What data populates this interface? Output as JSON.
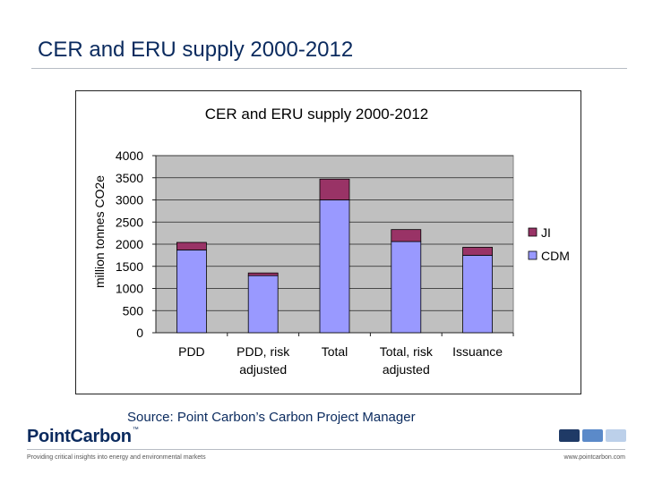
{
  "slide": {
    "title": "CER and ERU supply 2000-2012",
    "source": "Source: Point Carbon’s Carbon Project Manager",
    "logo_text": "PointCarbon",
    "logo_tm": "™",
    "tagline": "Providing critical insights into energy and environmental markets",
    "website": "www.pointcarbon.com",
    "decor_colors": [
      "#1f3a66",
      "#5b8ac9",
      "#bcd0ea"
    ]
  },
  "chart_data": {
    "type": "bar",
    "stacked": true,
    "title": "CER and ERU supply 2000-2012",
    "xlabel": "",
    "ylabel": "million tonnes CO2e",
    "ylabel_visible": "million tonnes CO2e",
    "categories": [
      [
        "PDD"
      ],
      [
        "PDD, risk",
        "adjusted"
      ],
      [
        "Total"
      ],
      [
        "Total, risk",
        "adjusted"
      ],
      [
        "Issuance"
      ]
    ],
    "series": [
      {
        "name": "CDM",
        "color": "#9999ff",
        "values": [
          1870,
          1290,
          3000,
          2060,
          1750
        ]
      },
      {
        "name": "JI",
        "color": "#993366",
        "values": [
          170,
          60,
          470,
          270,
          180
        ]
      }
    ],
    "legend_order": [
      "JI",
      "CDM"
    ],
    "ylim": [
      0,
      4000
    ],
    "yticks": [
      0,
      500,
      1000,
      1500,
      2000,
      2500,
      3000,
      3500,
      4000
    ],
    "grid": true,
    "plot_background": "#c0c0c0",
    "legend_position": "right"
  }
}
